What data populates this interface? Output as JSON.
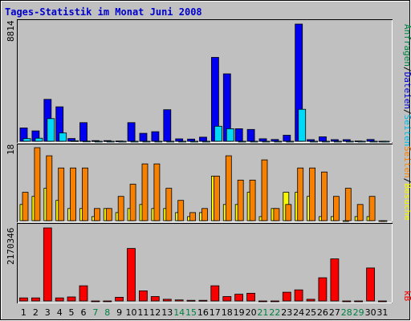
{
  "title": "Tages-Statistik im Monat Juni 2008",
  "colors": {
    "background": "#c0c0c0",
    "title": "#0000cc",
    "anfragen": "#0000ee",
    "dateien": "#00d8f8",
    "seiten": "#f88000",
    "besuche": "#f8f800",
    "kb": "#f80000",
    "weekday_label": "#000000",
    "weekend_label": "#008040"
  },
  "chart_data": [
    {
      "type": "bar",
      "panel": "top",
      "ymax_label": "8814",
      "ylim": [
        0,
        8814
      ],
      "side_labels": [
        {
          "text": "Anfragen",
          "color": "#008040"
        },
        {
          "text": "/",
          "color": "#000000"
        },
        {
          "text": "Dateien",
          "color": "#0000cc"
        },
        {
          "text": "/",
          "color": "#000000"
        },
        {
          "text": "Seiten",
          "color": "#00b8e0"
        }
      ],
      "series": [
        {
          "name": "Anfragen",
          "color_key": "anfragen",
          "values": [
            1000,
            780,
            3150,
            2590,
            205,
            1400,
            50,
            50,
            20,
            1400,
            600,
            720,
            2370,
            180,
            160,
            310,
            6310,
            5070,
            940,
            890,
            190,
            130,
            450,
            8814,
            120,
            330,
            120,
            120,
            20,
            130,
            0
          ]
        },
        {
          "name": "Dateien",
          "color_key": "dateien",
          "values": [
            200,
            230,
            1700,
            620,
            40,
            15,
            0,
            0,
            0,
            0,
            0,
            0,
            0,
            0,
            0,
            0,
            1130,
            940,
            0,
            0,
            0,
            0,
            0,
            2400,
            0,
            0,
            0,
            0,
            0,
            0,
            0
          ]
        }
      ]
    },
    {
      "type": "bar",
      "panel": "middle",
      "ymax_label": "18",
      "ylim": [
        0,
        18
      ],
      "side_labels": [
        {
          "text": "Seiten",
          "color": "#f88000"
        },
        {
          "text": "/",
          "color": "#000000"
        },
        {
          "text": "Besuche",
          "color": "#f8f800"
        }
      ],
      "series": [
        {
          "name": "Besuche",
          "color_key": "besuche",
          "values": [
            4,
            6,
            8,
            5,
            3,
            3,
            1,
            3,
            2,
            3,
            4,
            3,
            3,
            2,
            1,
            2,
            11,
            4,
            4,
            7,
            1,
            3,
            7,
            7,
            6,
            1,
            1,
            0,
            1,
            1,
            0
          ]
        },
        {
          "name": "Seiten",
          "color_key": "seiten",
          "values": [
            7,
            18,
            16,
            13,
            13,
            13,
            3,
            3,
            6,
            9,
            14,
            14,
            8,
            5,
            2,
            3,
            11,
            16,
            10,
            10,
            15,
            3,
            4,
            13,
            13,
            12,
            6,
            8,
            4,
            6,
            0
          ]
        }
      ]
    },
    {
      "type": "bar",
      "panel": "bottom",
      "ymax_label": "2170346",
      "ylim": [
        0,
        2170346
      ],
      "side_labels": [
        {
          "text": "kB",
          "color": "#f80000"
        }
      ],
      "series": [
        {
          "name": "kB",
          "color_key": "kb",
          "values": [
            90000,
            90000,
            2170346,
            90000,
            120000,
            450000,
            0,
            0,
            110000,
            1560000,
            300000,
            130000,
            50000,
            30000,
            20000,
            20000,
            450000,
            130000,
            200000,
            230000,
            0,
            0,
            260000,
            330000,
            50000,
            690000,
            1250000,
            0,
            0,
            980000,
            0
          ]
        }
      ]
    }
  ],
  "days": [
    {
      "label": "1",
      "weekend": false
    },
    {
      "label": "2",
      "weekend": false
    },
    {
      "label": "3",
      "weekend": false
    },
    {
      "label": "4",
      "weekend": false
    },
    {
      "label": "5",
      "weekend": false
    },
    {
      "label": "6",
      "weekend": false
    },
    {
      "label": "7",
      "weekend": true
    },
    {
      "label": "8",
      "weekend": true
    },
    {
      "label": "9",
      "weekend": false
    },
    {
      "label": "10",
      "weekend": false
    },
    {
      "label": "11",
      "weekend": false
    },
    {
      "label": "12",
      "weekend": false
    },
    {
      "label": "13",
      "weekend": false
    },
    {
      "label": "14",
      "weekend": true
    },
    {
      "label": "15",
      "weekend": true
    },
    {
      "label": "16",
      "weekend": false
    },
    {
      "label": "17",
      "weekend": false
    },
    {
      "label": "18",
      "weekend": false
    },
    {
      "label": "19",
      "weekend": false
    },
    {
      "label": "20",
      "weekend": false
    },
    {
      "label": "21",
      "weekend": true
    },
    {
      "label": "22",
      "weekend": true
    },
    {
      "label": "23",
      "weekend": false
    },
    {
      "label": "24",
      "weekend": false
    },
    {
      "label": "25",
      "weekend": false
    },
    {
      "label": "26",
      "weekend": false
    },
    {
      "label": "27",
      "weekend": false
    },
    {
      "label": "28",
      "weekend": true
    },
    {
      "label": "29",
      "weekend": true
    },
    {
      "label": "30",
      "weekend": false
    },
    {
      "label": "31",
      "weekend": false
    }
  ]
}
